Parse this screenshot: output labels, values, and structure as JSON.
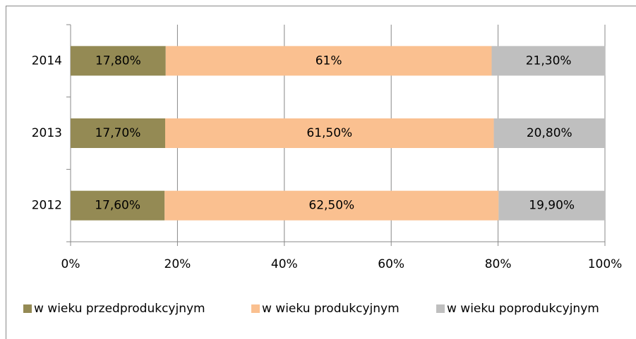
{
  "chart_data": {
    "type": "stacked-bar-horizontal",
    "categories": [
      "2012",
      "2013",
      "2014"
    ],
    "series": [
      {
        "name": "w wieku przedprodukcyjnym",
        "color": "#948a54",
        "values": [
          17.6,
          17.7,
          17.8
        ],
        "value_labels": [
          "17,60%",
          "17,70%",
          "17,80%"
        ]
      },
      {
        "name": "w wieku produkcyjnym",
        "color": "#fac090",
        "values": [
          62.5,
          61.5,
          61
        ],
        "value_labels": [
          "62,50%",
          "61,50%",
          "61%"
        ]
      },
      {
        "name": "w wieku poprodukcyjnym",
        "color": "#bfbfbf",
        "values": [
          19.9,
          20.8,
          21.3
        ],
        "value_labels": [
          "19,90%",
          "20,80%",
          "21,30%"
        ]
      }
    ],
    "xlim": [
      0,
      100
    ],
    "xticks": [
      {
        "value": 0,
        "label": "0%"
      },
      {
        "value": 20,
        "label": "20%"
      },
      {
        "value": 40,
        "label": "40%"
      },
      {
        "value": 60,
        "label": "60%"
      },
      {
        "value": 80,
        "label": "80%"
      },
      {
        "value": 100,
        "label": "100%"
      }
    ],
    "grid": true,
    "legend": "bottom"
  }
}
